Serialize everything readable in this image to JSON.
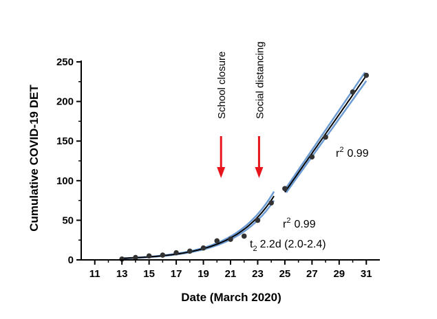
{
  "chart_data": {
    "type": "scatter",
    "xlabel": "Date (March 2020)",
    "ylabel": "Cumulative COVID-19 DET",
    "xlim": [
      10,
      32
    ],
    "ylim": [
      0,
      250
    ],
    "x_ticks": [
      11,
      13,
      15,
      17,
      19,
      21,
      23,
      25,
      27,
      29,
      31
    ],
    "y_ticks": [
      0,
      50,
      100,
      150,
      200,
      250
    ],
    "colors": {
      "points": "#333333",
      "fit": "#000000",
      "ci": "#6b9bd2",
      "arrow": "#e8141c"
    },
    "series": [
      {
        "x": [
          13,
          14,
          15,
          16,
          17,
          18,
          19,
          20,
          21,
          22,
          23,
          24
        ],
        "y": [
          1,
          3,
          5,
          6,
          9,
          11,
          15,
          24,
          26,
          30,
          50,
          72
        ]
      },
      {
        "x": [
          25,
          27,
          28,
          31,
          30
        ],
        "y": [
          90,
          130,
          155,
          233,
          212
        ]
      }
    ],
    "fits": [
      {
        "model": "exponential",
        "x_range": [
          13,
          24.2
        ],
        "r2_label": "r",
        "r2_sup": "2",
        "r2_value": "0.99",
        "doubling_label": "t",
        "doubling_sub": "2",
        "doubling_value": "2.2d (2.0-2.4)"
      },
      {
        "model": "linear",
        "x_range": [
          25,
          31
        ],
        "r2_label": "r",
        "r2_sup": "2",
        "r2_value": "0.99"
      }
    ],
    "events": [
      {
        "label": "School closure",
        "x": 20.3
      },
      {
        "label": "Social distancing",
        "x": 23.1
      }
    ]
  }
}
